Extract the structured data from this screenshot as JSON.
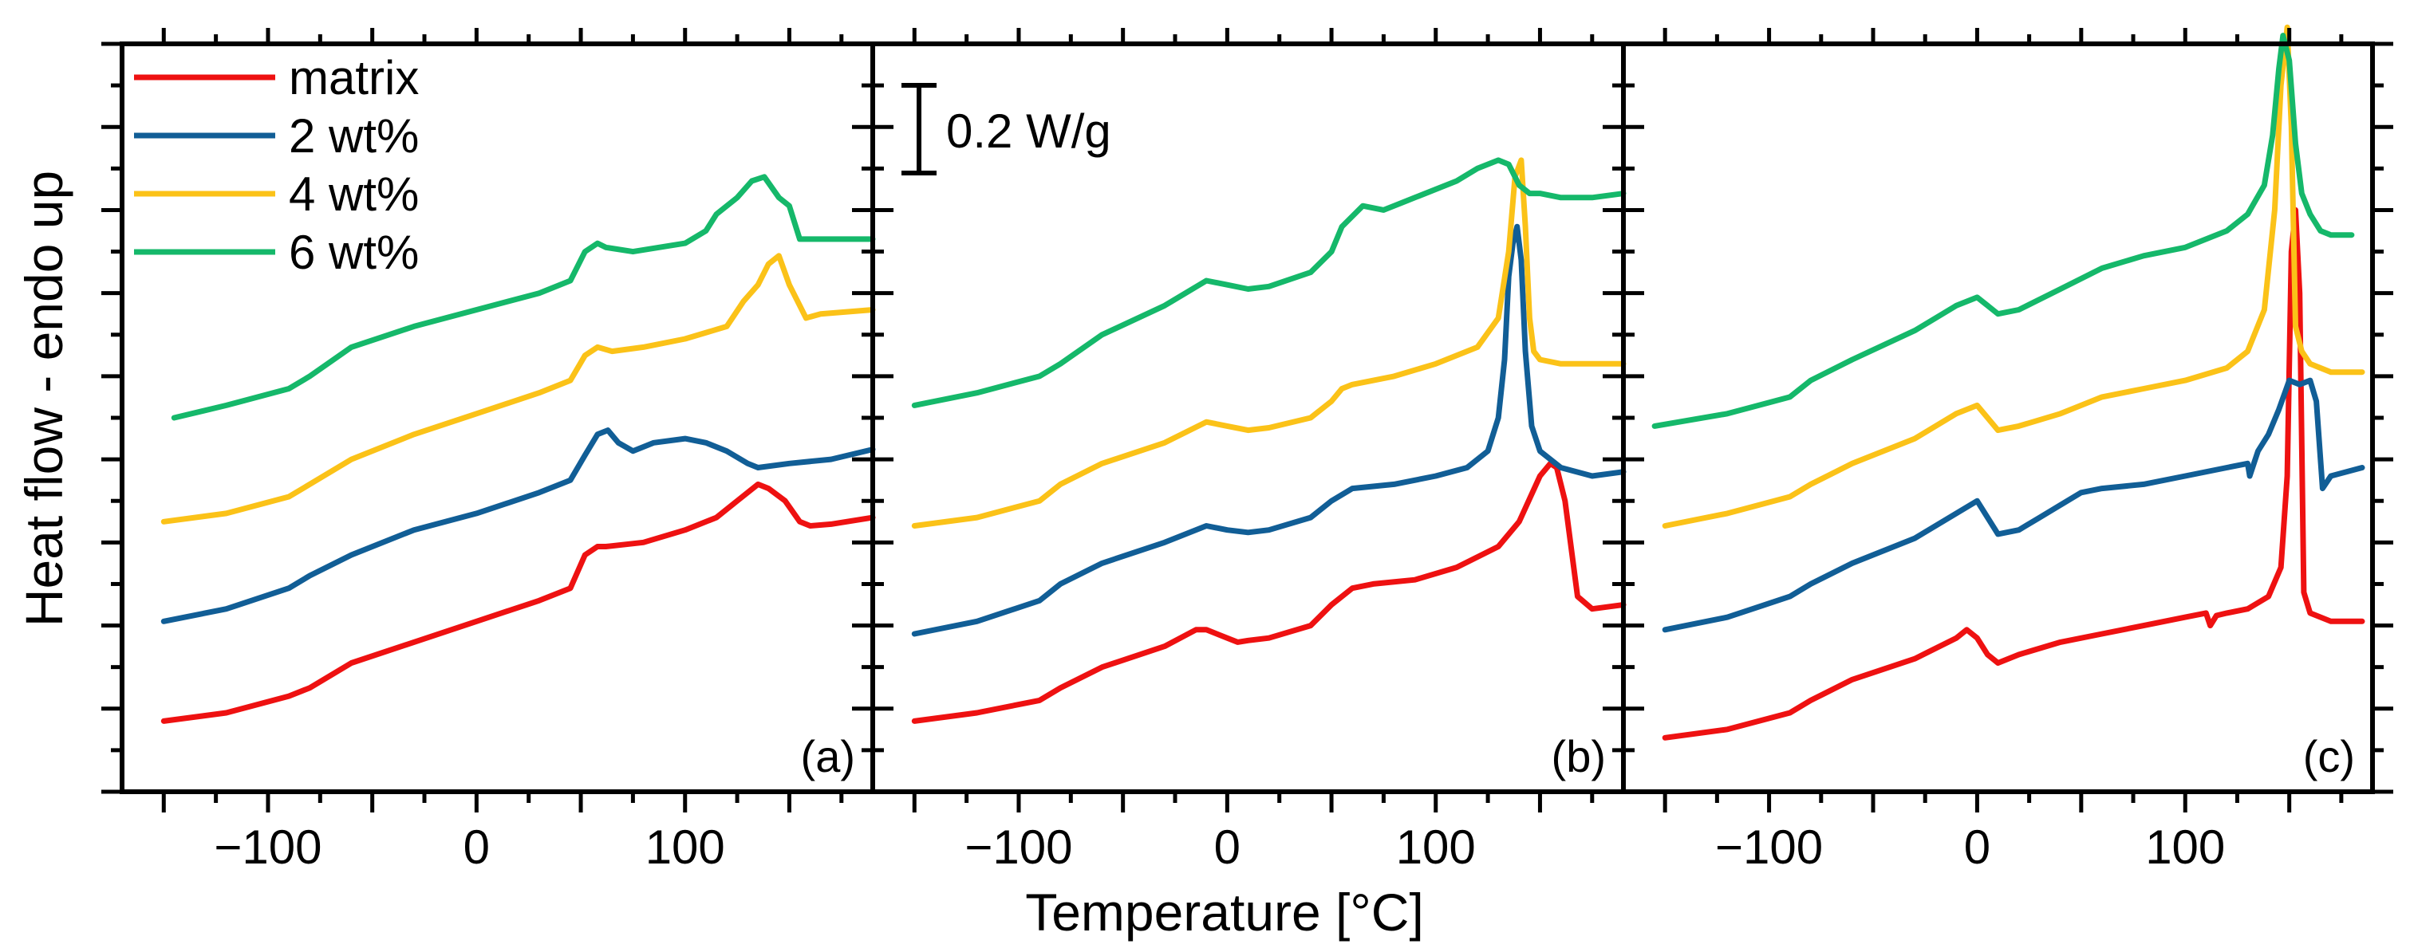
{
  "chart_data": {
    "type": "line",
    "xlabel": "Temperature [°C]",
    "ylabel": "Heat flow - endo up",
    "xlim": [
      -170,
      190
    ],
    "ylim": [
      0,
      9
    ],
    "xticks": [
      -100,
      0,
      100
    ],
    "xtick_labels": [
      "−100",
      "0",
      "100"
    ],
    "y_ticks_unlabeled": true,
    "scale_bar": {
      "label": "0.2 W/g",
      "value": 1.0
    },
    "legend": {
      "placement": "top-left",
      "entries": [
        {
          "name": "matrix",
          "color": "#ee1111"
        },
        {
          "name": "2 wt%",
          "color": "#115e96"
        },
        {
          "name": "4 wt%",
          "color": "#fbc218"
        },
        {
          "name": "6 wt%",
          "color": "#15b86a"
        }
      ]
    },
    "panels": [
      {
        "label": "(a)",
        "series": [
          {
            "name": "matrix",
            "color": "#ee1111",
            "x": [
              -150,
              -120,
              -90,
              -80,
              -60,
              -30,
              0,
              30,
              45,
              52,
              58,
              62,
              80,
              100,
              115,
              125,
              135,
              140,
              148,
              155,
              160,
              170,
              190
            ],
            "y": [
              0.85,
              0.95,
              1.15,
              1.25,
              1.55,
              1.8,
              2.05,
              2.3,
              2.45,
              2.85,
              2.95,
              2.95,
              3.0,
              3.15,
              3.3,
              3.5,
              3.7,
              3.65,
              3.5,
              3.25,
              3.2,
              3.22,
              3.3
            ]
          },
          {
            "name": "2 wt%",
            "color": "#115e96",
            "x": [
              -150,
              -120,
              -90,
              -80,
              -60,
              -30,
              0,
              30,
              45,
              52,
              58,
              63,
              68,
              75,
              85,
              100,
              110,
              120,
              130,
              135,
              150,
              170,
              190
            ],
            "y": [
              2.05,
              2.2,
              2.45,
              2.6,
              2.85,
              3.15,
              3.35,
              3.6,
              3.75,
              4.05,
              4.3,
              4.35,
              4.2,
              4.1,
              4.2,
              4.25,
              4.2,
              4.1,
              3.95,
              3.9,
              3.95,
              4.0,
              4.12
            ]
          },
          {
            "name": "4 wt%",
            "color": "#fbc218",
            "x": [
              -150,
              -120,
              -90,
              -80,
              -60,
              -30,
              0,
              30,
              45,
              52,
              58,
              65,
              80,
              100,
              120,
              128,
              135,
              140,
              145,
              150,
              158,
              165,
              190
            ],
            "y": [
              3.25,
              3.35,
              3.55,
              3.7,
              4.0,
              4.3,
              4.55,
              4.8,
              4.95,
              5.25,
              5.35,
              5.3,
              5.35,
              5.45,
              5.6,
              5.9,
              6.1,
              6.35,
              6.45,
              6.1,
              5.7,
              5.75,
              5.8
            ]
          },
          {
            "name": "6 wt%",
            "color": "#15b86a",
            "x": [
              -145,
              -120,
              -90,
              -80,
              -60,
              -30,
              0,
              30,
              45,
              52,
              58,
              62,
              75,
              100,
              110,
              115,
              125,
              132,
              138,
              145,
              150,
              155,
              190
            ],
            "y": [
              4.5,
              4.65,
              4.85,
              5.0,
              5.35,
              5.6,
              5.8,
              6.0,
              6.15,
              6.5,
              6.6,
              6.55,
              6.5,
              6.6,
              6.75,
              6.95,
              7.15,
              7.35,
              7.4,
              7.15,
              7.05,
              6.65,
              6.65
            ]
          }
        ]
      },
      {
        "label": "(b)",
        "series": [
          {
            "name": "matrix",
            "color": "#ee1111",
            "x": [
              -150,
              -120,
              -90,
              -80,
              -60,
              -30,
              -15,
              -10,
              0,
              5,
              10,
              20,
              40,
              50,
              60,
              70,
              90,
              110,
              130,
              140,
              150,
              155,
              158,
              162,
              168,
              175,
              190
            ],
            "y": [
              0.85,
              0.95,
              1.1,
              1.25,
              1.5,
              1.75,
              1.95,
              1.95,
              1.85,
              1.8,
              1.82,
              1.85,
              2.0,
              2.25,
              2.45,
              2.5,
              2.55,
              2.7,
              2.95,
              3.25,
              3.8,
              3.95,
              3.9,
              3.5,
              2.35,
              2.2,
              2.25
            ]
          },
          {
            "name": "2 wt%",
            "color": "#115e96",
            "x": [
              -150,
              -120,
              -90,
              -80,
              -60,
              -30,
              -10,
              0,
              10,
              20,
              40,
              50,
              60,
              80,
              100,
              115,
              125,
              130,
              133,
              135,
              137,
              139,
              141,
              143,
              146,
              150,
              160,
              175,
              190
            ],
            "y": [
              1.9,
              2.05,
              2.3,
              2.5,
              2.75,
              3.0,
              3.2,
              3.15,
              3.12,
              3.15,
              3.3,
              3.5,
              3.65,
              3.7,
              3.8,
              3.9,
              4.1,
              4.5,
              5.2,
              6.2,
              6.6,
              6.8,
              6.4,
              5.3,
              4.4,
              4.1,
              3.9,
              3.8,
              3.85
            ]
          },
          {
            "name": "4 wt%",
            "color": "#fbc218",
            "x": [
              -150,
              -120,
              -90,
              -80,
              -60,
              -30,
              -10,
              0,
              10,
              20,
              40,
              50,
              55,
              60,
              80,
              100,
              120,
              130,
              135,
              138,
              141,
              143,
              145,
              147,
              150,
              160,
              175,
              190
            ],
            "y": [
              3.2,
              3.3,
              3.5,
              3.7,
              3.95,
              4.2,
              4.45,
              4.4,
              4.35,
              4.38,
              4.5,
              4.7,
              4.85,
              4.9,
              5.0,
              5.15,
              5.35,
              5.7,
              6.5,
              7.4,
              7.6,
              6.8,
              5.7,
              5.3,
              5.2,
              5.15,
              5.15,
              5.15
            ]
          },
          {
            "name": "6 wt%",
            "color": "#15b86a",
            "x": [
              -150,
              -120,
              -90,
              -80,
              -60,
              -30,
              -10,
              0,
              10,
              20,
              40,
              50,
              55,
              65,
              75,
              90,
              110,
              120,
              130,
              135,
              140,
              145,
              150,
              160,
              175,
              190
            ],
            "y": [
              4.65,
              4.8,
              5.0,
              5.15,
              5.5,
              5.85,
              6.15,
              6.1,
              6.05,
              6.08,
              6.25,
              6.5,
              6.8,
              7.05,
              7.0,
              7.15,
              7.35,
              7.5,
              7.6,
              7.55,
              7.3,
              7.2,
              7.2,
              7.15,
              7.15,
              7.2
            ]
          }
        ]
      },
      {
        "label": "(c)",
        "series": [
          {
            "name": "matrix",
            "color": "#ee1111",
            "x": [
              -150,
              -120,
              -90,
              -80,
              -60,
              -30,
              -10,
              -5,
              0,
              5,
              10,
              20,
              40,
              60,
              80,
              100,
              110,
              112,
              115,
              120,
              130,
              140,
              146,
              149,
              151,
              153,
              155,
              157,
              160,
              170,
              185
            ],
            "y": [
              0.65,
              0.75,
              0.95,
              1.1,
              1.35,
              1.6,
              1.85,
              1.95,
              1.85,
              1.65,
              1.55,
              1.65,
              1.8,
              1.9,
              2.0,
              2.1,
              2.15,
              2.0,
              2.12,
              2.15,
              2.2,
              2.35,
              2.7,
              3.8,
              6.5,
              7.0,
              6.0,
              2.4,
              2.15,
              2.05,
              2.05
            ]
          },
          {
            "name": "2 wt%",
            "color": "#115e96",
            "x": [
              -150,
              -120,
              -90,
              -80,
              -60,
              -30,
              -10,
              0,
              5,
              10,
              20,
              30,
              40,
              50,
              60,
              80,
              100,
              120,
              130,
              131,
              135,
              140,
              145,
              150,
              155,
              160,
              163,
              166,
              170,
              185
            ],
            "y": [
              1.95,
              2.1,
              2.35,
              2.5,
              2.75,
              3.05,
              3.35,
              3.5,
              3.3,
              3.1,
              3.15,
              3.3,
              3.45,
              3.6,
              3.65,
              3.7,
              3.8,
              3.9,
              3.95,
              3.8,
              4.1,
              4.3,
              4.6,
              4.95,
              4.9,
              4.95,
              4.7,
              3.65,
              3.8,
              3.9
            ]
          },
          {
            "name": "4 wt%",
            "color": "#fbc218",
            "x": [
              -150,
              -120,
              -90,
              -80,
              -60,
              -30,
              -10,
              0,
              5,
              10,
              20,
              40,
              60,
              80,
              100,
              120,
              130,
              138,
              143,
              146,
              149,
              151,
              153,
              156,
              160,
              170,
              185
            ],
            "y": [
              3.2,
              3.35,
              3.55,
              3.7,
              3.95,
              4.25,
              4.55,
              4.65,
              4.5,
              4.35,
              4.4,
              4.55,
              4.75,
              4.85,
              4.95,
              5.1,
              5.3,
              5.8,
              7.0,
              8.5,
              9.2,
              8.0,
              5.6,
              5.3,
              5.15,
              5.05,
              5.05
            ]
          },
          {
            "name": "6 wt%",
            "color": "#15b86a",
            "x": [
              -155,
              -120,
              -90,
              -80,
              -60,
              -30,
              -10,
              0,
              5,
              10,
              20,
              40,
              60,
              80,
              100,
              120,
              130,
              138,
              142,
              145,
              147,
              150,
              153,
              156,
              160,
              165,
              170,
              180
            ],
            "y": [
              4.4,
              4.55,
              4.75,
              4.95,
              5.2,
              5.55,
              5.85,
              5.95,
              5.85,
              5.75,
              5.8,
              6.05,
              6.3,
              6.45,
              6.55,
              6.75,
              6.95,
              7.3,
              7.9,
              8.7,
              9.1,
              8.8,
              7.8,
              7.2,
              6.95,
              6.75,
              6.7,
              6.7
            ]
          }
        ]
      }
    ]
  }
}
